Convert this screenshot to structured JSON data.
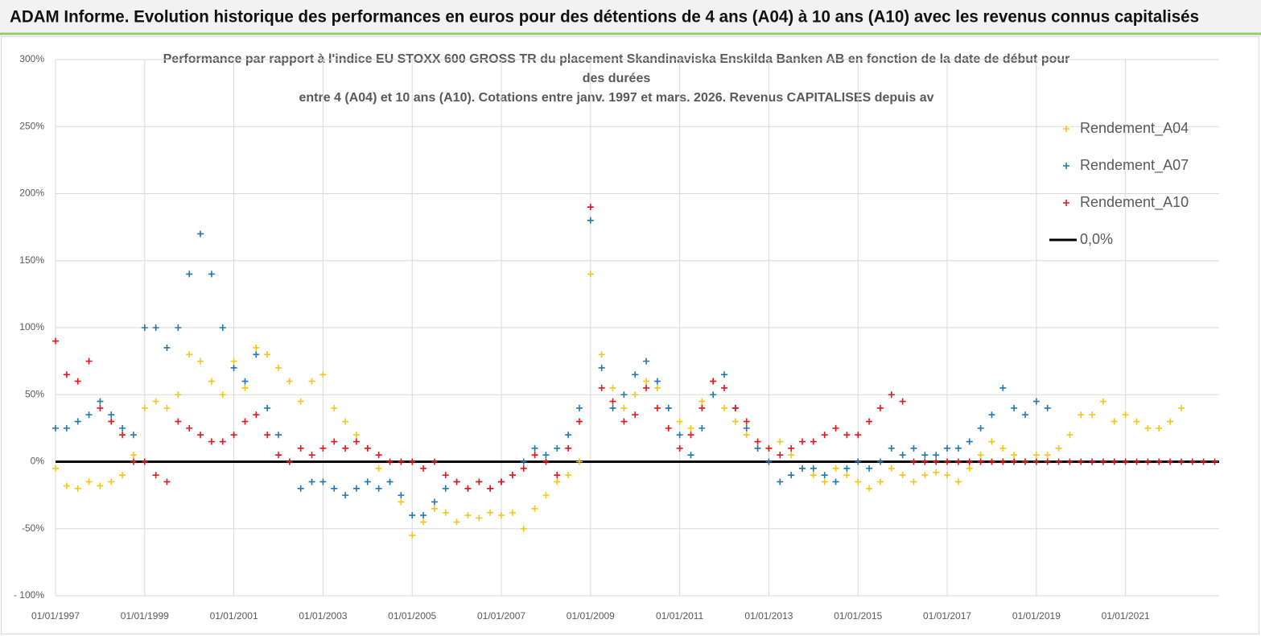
{
  "header": "ADAM Informe. Evolution historique des performances en euros pour des détentions de 4 ans (A04) à 10 ans (A10) avec les revenus connus capitalisés",
  "chart_data": {
    "type": "scatter",
    "title": [
      "Performance par rapport à l'indice EU STOXX 600 GROSS TR  du placement Skandinaviska Enskilda Banken AB en fonction de la date de début pour",
      "des durées",
      "entre 4 (A04) et 10 ans (A10). Cotations entre janv. 1997 et mars. 2026. Revenus CAPITALISES depuis av"
    ],
    "x": [
      1997,
      1997.25,
      1997.5,
      1997.75,
      1998,
      1998.25,
      1998.5,
      1998.75,
      1999,
      1999.25,
      1999.5,
      1999.75,
      2000,
      2000.25,
      2000.5,
      2000.75,
      2001,
      2001.25,
      2001.5,
      2001.75,
      2002,
      2002.25,
      2002.5,
      2002.75,
      2003,
      2003.25,
      2003.5,
      2003.75,
      2004,
      2004.25,
      2004.5,
      2004.75,
      2005,
      2005.25,
      2005.5,
      2005.75,
      2006,
      2006.25,
      2006.5,
      2006.75,
      2007,
      2007.25,
      2007.5,
      2007.75,
      2008,
      2008.25,
      2008.5,
      2008.75,
      2009,
      2009.25,
      2009.5,
      2009.75,
      2010,
      2010.25,
      2010.5,
      2010.75,
      2011,
      2011.25,
      2011.5,
      2011.75,
      2012,
      2012.25,
      2012.5,
      2012.75,
      2013,
      2013.25,
      2013.5,
      2013.75,
      2014,
      2014.25,
      2014.5,
      2014.75,
      2015,
      2015.25,
      2015.5,
      2015.75,
      2016,
      2016.25,
      2016.5,
      2016.75,
      2017,
      2017.25,
      2017.5,
      2017.75,
      2018,
      2018.25,
      2018.5,
      2018.75,
      2019,
      2019.25,
      2019.5,
      2019.75,
      2020,
      2020.25,
      2020.5,
      2020.75,
      2021,
      2021.25,
      2021.5,
      2021.75,
      2022,
      2022.25,
      2022.5,
      2022.75,
      2023
    ],
    "series": [
      {
        "name": "Rendement_A04",
        "color": "#f5c518",
        "values": [
          -5,
          -18,
          -20,
          -15,
          -18,
          -15,
          -10,
          5,
          40,
          45,
          40,
          50,
          80,
          75,
          60,
          50,
          75,
          55,
          85,
          80,
          70,
          60,
          45,
          60,
          65,
          40,
          30,
          20,
          10,
          -5,
          -15,
          -30,
          -55,
          -45,
          -35,
          -38,
          -45,
          -40,
          -42,
          -38,
          -40,
          -38,
          -50,
          -35,
          -25,
          -15,
          -10,
          0,
          140,
          80,
          55,
          40,
          50,
          60,
          55,
          40,
          30,
          25,
          45,
          60,
          40,
          30,
          20,
          10,
          10,
          15,
          5,
          -5,
          -10,
          -15,
          -5,
          -10,
          -15,
          -20,
          -15,
          -5,
          -10,
          -15,
          -10,
          -8,
          -10,
          -15,
          -5,
          5,
          15,
          10,
          5,
          0,
          5,
          5,
          10,
          20,
          35,
          35,
          45,
          30,
          35,
          30,
          25,
          25,
          30,
          40,
          null,
          null,
          null
        ]
      },
      {
        "name": "Rendement_A07",
        "color": "#1f77b4",
        "values": [
          25,
          25,
          30,
          35,
          45,
          35,
          25,
          20,
          100,
          100,
          85,
          100,
          140,
          170,
          140,
          100,
          70,
          60,
          80,
          40,
          20,
          0,
          -20,
          -15,
          -15,
          -20,
          -25,
          -20,
          -15,
          -20,
          -15,
          -25,
          -40,
          -40,
          -30,
          -20,
          -15,
          -20,
          -15,
          -20,
          -15,
          -10,
          0,
          10,
          5,
          10,
          20,
          40,
          180,
          70,
          40,
          50,
          65,
          75,
          60,
          40,
          20,
          5,
          25,
          50,
          65,
          40,
          25,
          10,
          0,
          -15,
          -10,
          -5,
          -5,
          -10,
          -15,
          -5,
          0,
          -5,
          0,
          10,
          5,
          10,
          5,
          5,
          10,
          10,
          15,
          25,
          35,
          55,
          40,
          35,
          45,
          40,
          null,
          null,
          null,
          null,
          null,
          null,
          null,
          null,
          null,
          null,
          null,
          null,
          null,
          null,
          null
        ]
      },
      {
        "name": "Rendement_A10",
        "color": "#e8141a",
        "values": [
          90,
          65,
          60,
          75,
          40,
          30,
          20,
          0,
          0,
          -10,
          -15,
          30,
          25,
          20,
          15,
          15,
          20,
          30,
          35,
          20,
          5,
          0,
          10,
          5,
          10,
          15,
          10,
          15,
          10,
          5,
          0,
          0,
          0,
          -5,
          0,
          -10,
          -15,
          -20,
          -15,
          -20,
          -15,
          -10,
          -5,
          5,
          0,
          -10,
          10,
          30,
          190,
          55,
          45,
          30,
          35,
          55,
          40,
          25,
          10,
          20,
          40,
          60,
          55,
          40,
          30,
          15,
          10,
          5,
          10,
          15,
          15,
          20,
          25,
          20,
          20,
          30,
          40,
          50,
          45,
          0,
          0,
          0,
          0,
          0,
          0,
          0,
          0,
          0,
          0,
          0,
          0,
          0,
          0,
          0,
          0,
          0,
          0,
          0,
          0,
          0,
          0,
          0,
          0,
          0,
          0,
          0,
          0
        ]
      }
    ],
    "reference_line": {
      "name": "0,0%",
      "value": 0,
      "color": "#000000"
    },
    "xlim": [
      1997,
      2023.1
    ],
    "xticks": [
      {
        "value": 1997,
        "label": "01/01/1997"
      },
      {
        "value": 1999,
        "label": "01/01/1999"
      },
      {
        "value": 2001,
        "label": "01/01/2001"
      },
      {
        "value": 2003,
        "label": "01/01/2003"
      },
      {
        "value": 2005,
        "label": "01/01/2005"
      },
      {
        "value": 2007,
        "label": "01/01/2007"
      },
      {
        "value": 2009,
        "label": "01/01/2009"
      },
      {
        "value": 2011,
        "label": "01/01/2011"
      },
      {
        "value": 2013,
        "label": "01/01/2013"
      },
      {
        "value": 2015,
        "label": "01/01/2015"
      },
      {
        "value": 2017,
        "label": "01/01/2017"
      },
      {
        "value": 2019,
        "label": "01/01/2019"
      },
      {
        "value": 2021,
        "label": "01/01/2021"
      }
    ],
    "ylim": [
      -100,
      300
    ],
    "yticks": [
      {
        "value": -100,
        "label": "- 100%"
      },
      {
        "value": -50,
        "label": "-50%"
      },
      {
        "value": 0,
        "label": "0%"
      },
      {
        "value": 50,
        "label": "50%"
      },
      {
        "value": 100,
        "label": "100%"
      },
      {
        "value": 150,
        "label": "150%"
      },
      {
        "value": 200,
        "label": "200%"
      },
      {
        "value": 250,
        "label": "250%"
      },
      {
        "value": 300,
        "label": "300%"
      }
    ],
    "grid": true,
    "legend": "upper right"
  }
}
